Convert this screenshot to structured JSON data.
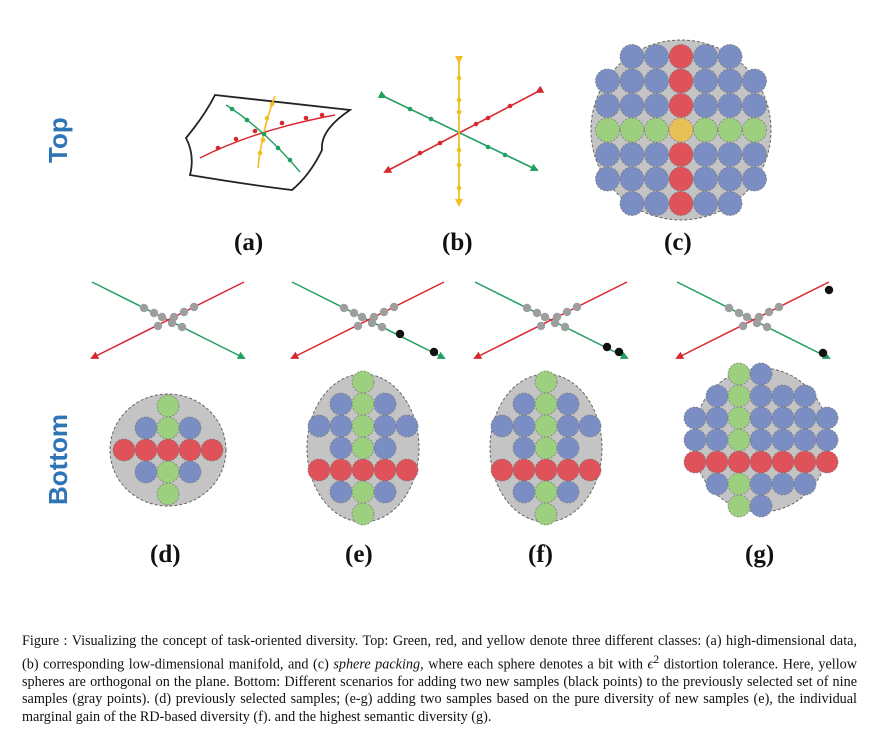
{
  "row_labels": {
    "top": "Top",
    "bottom": "Bottom"
  },
  "panels": [
    {
      "id": "a",
      "label": "(a)"
    },
    {
      "id": "b",
      "label": "(b)"
    },
    {
      "id": "c",
      "label": "(c)"
    },
    {
      "id": "d",
      "label": "(d)"
    },
    {
      "id": "e",
      "label": "(e)"
    },
    {
      "id": "f",
      "label": "(f)"
    },
    {
      "id": "g",
      "label": "(g)"
    }
  ],
  "colors": {
    "green_class": "#21a060",
    "red_class": "#d9272e",
    "yellow_class": "#f2be22",
    "blue_sphere": "#7b8ec4",
    "green_sphere": "#9ccf7e",
    "red_sphere": "#e0525a",
    "yellow_sphere": "#e8c058",
    "gray_sample": "#9e9e9e",
    "new_sample": "#111111",
    "packing_disc": "#c4c4c4",
    "row_label": "#2e75b6"
  },
  "caption": {
    "fig": "Figure   : Visualizing the concept of task-oriented diversity. Top: Green, red, and yellow denote three different classes: (a) high-dimensional data, (b) corresponding low-dimensional manifold, and (c) ",
    "italic": "sphere packing",
    "mid": ", where each sphere denotes a bit with ",
    "eps": "ϵ",
    "sup": "2",
    "rest": " distortion tolerance. Here, yellow spheres are orthogonal on the plane. Bottom: Different scenarios for adding two new samples (black points) to the previously selected set of nine samples (gray points). (d) previously selected samples; (e-g) adding two samples based on the pure diversity of new samples (e), the individual marginal gain of the RD-based diversity (f). and the highest semantic diversity (g)."
  }
}
